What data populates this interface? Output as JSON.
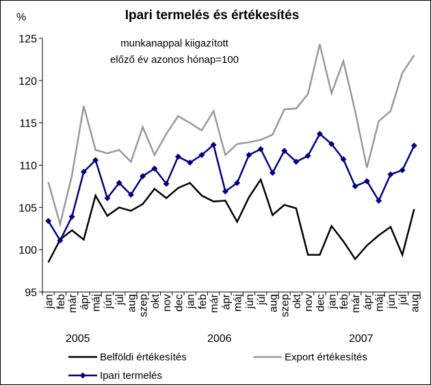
{
  "chart_data": {
    "type": "line",
    "title": "Ipari  termelés és értékesítés",
    "subtitle": [
      "munkanappal kiigazított",
      "előző év azonos hónap=100"
    ],
    "y_unit": "%",
    "categories": [
      "jan",
      "feb",
      "már",
      "ápr",
      "máj",
      "jún",
      "júl",
      "aug",
      "szep",
      "okt",
      "nov",
      "dec",
      "jan",
      "feb",
      "már",
      "ápr",
      "máj",
      "jún",
      "júl",
      "aug",
      "szep",
      "okt",
      "nov",
      "dec",
      "jan",
      "feb",
      "már",
      "ápr",
      "máj",
      "jún",
      "júl",
      "aug"
    ],
    "year_labels": [
      "2005",
      "2006",
      "2007"
    ],
    "ylim": [
      95,
      125
    ],
    "yticks": [
      95,
      100,
      105,
      110,
      115,
      120,
      125
    ],
    "grid": false,
    "series": [
      {
        "name": "Belföldi értékesítés",
        "color": "#000000",
        "marker": "none",
        "values": [
          98.5,
          101.2,
          102.3,
          101.2,
          106.4,
          104,
          105,
          104.6,
          105.4,
          107.2,
          106.1,
          107.3,
          107.9,
          106.4,
          105.7,
          105.8,
          103.3,
          106.2,
          108.3,
          104.1,
          105.3,
          104.9,
          99.4,
          99.4,
          102.8,
          101,
          98.9,
          100.5,
          101.7,
          102.7,
          99.4,
          104.8
        ]
      },
      {
        "name": "Export értékesítés",
        "color": "#999999",
        "marker": "none",
        "values": [
          108,
          103,
          108.8,
          117,
          111.8,
          111.4,
          111.8,
          110.4,
          114.5,
          111.2,
          113.7,
          115.8,
          115,
          114.1,
          116.4,
          111.2,
          112.5,
          112.7,
          113,
          113.6,
          116.6,
          116.7,
          118.4,
          124.3,
          118.5,
          122.3,
          116.4,
          109.7,
          115.2,
          116.4,
          120.9,
          123
        ]
      },
      {
        "name": "Ipari termelés",
        "color": "#000080",
        "marker": "diamond",
        "values": [
          103.4,
          101.1,
          103.9,
          109.2,
          110.6,
          106.1,
          107.9,
          106.5,
          108.7,
          109.6,
          107.8,
          111,
          110.3,
          111.2,
          112.4,
          106.9,
          107.9,
          111.2,
          111.9,
          109.1,
          111.7,
          110.4,
          111.1,
          113.7,
          112.5,
          110.7,
          107.5,
          108.1,
          105.8,
          108.9,
          109.4,
          112.3
        ]
      }
    ]
  }
}
